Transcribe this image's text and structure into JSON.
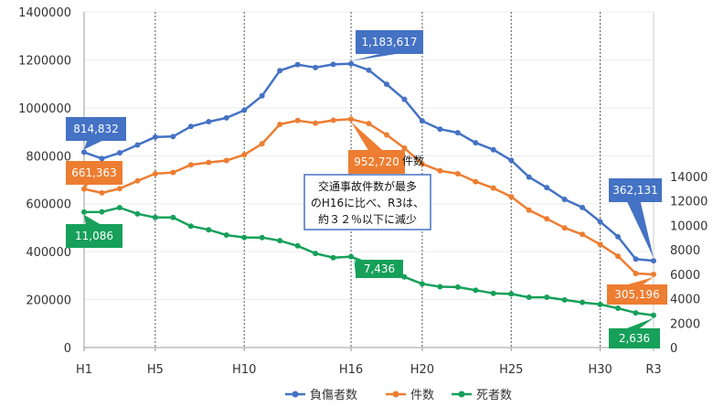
{
  "chart_data": {
    "type": "line",
    "categories": [
      "H1",
      "H2",
      "H3",
      "H4",
      "H5",
      "H6",
      "H7",
      "H8",
      "H9",
      "H10",
      "H11",
      "H12",
      "H13",
      "H14",
      "H15",
      "H16",
      "H17",
      "H18",
      "H19",
      "H20",
      "H21",
      "H22",
      "H23",
      "H24",
      "H25",
      "H26",
      "H27",
      "H28",
      "H29",
      "H30",
      "R1",
      "R2",
      "R3"
    ],
    "x_tick_labels": [
      "H1",
      "H5",
      "H10",
      "H16",
      "H20",
      "H25",
      "H30",
      "R3"
    ],
    "y_left_ticks": [
      "0",
      "200000",
      "400000",
      "600000",
      "800000",
      "1000000",
      "1200000",
      "1400000"
    ],
    "y_left_range": [
      0,
      1400000
    ],
    "y_right_ticks": [
      "0",
      "2000",
      "4000",
      "6000",
      "8000",
      "10000",
      "12000",
      "14000"
    ],
    "y_right_range": [
      0,
      14000
    ],
    "grid": "vertical dashed",
    "legend_position": "bottom",
    "series": [
      {
        "name": "負傷者数",
        "color": "#4472c4",
        "axis": "left",
        "values": [
          814832,
          788000,
          812000,
          845000,
          878000,
          880000,
          922000,
          942000,
          958000,
          990000,
          1050000,
          1155000,
          1180000,
          1168000,
          1181000,
          1183617,
          1157000,
          1098000,
          1035000,
          945000,
          911000,
          896000,
          854000,
          825000,
          781000,
          711000,
          667000,
          618000,
          584000,
          525000,
          462000,
          369000,
          362131
        ]
      },
      {
        "name": "件数",
        "color": "#ed7d31",
        "axis": "left",
        "values": [
          661363,
          645000,
          663000,
          695000,
          725000,
          730000,
          762000,
          772000,
          780000,
          804000,
          850000,
          931000,
          947000,
          936000,
          948000,
          952720,
          934000,
          887000,
          832000,
          766000,
          737000,
          725000,
          692000,
          665000,
          629000,
          573000,
          537000,
          499000,
          472000,
          430000,
          381000,
          309000,
          305196
        ]
      },
      {
        "name": "死者数",
        "color": "#16a05a",
        "axis": "right",
        "values": [
          11086,
          11105,
          11451,
          10942,
          10649,
          10649,
          9942,
          9640,
          9211,
          9012,
          9006,
          8747,
          8326,
          7702,
          7358,
          7436,
          6871,
          6352,
          5782,
          5209,
          4979,
          4948,
          4691,
          4438,
          4388,
          4113,
          4117,
          3904,
          3694,
          3532,
          3215,
          2839,
          2636
        ]
      }
    ],
    "data_labels": [
      {
        "text": "814,832",
        "series": 0,
        "index": 0
      },
      {
        "text": "661,363",
        "series": 1,
        "index": 0
      },
      {
        "text": "11,086",
        "series": 2,
        "index": 0
      },
      {
        "text": "1,183,617",
        "series": 0,
        "index": 15
      },
      {
        "text": "952,720",
        "series": 1,
        "index": 15
      },
      {
        "text": "7,436",
        "series": 2,
        "index": 15
      },
      {
        "text": "362,131",
        "series": 0,
        "index": 32
      },
      {
        "text": "305,196",
        "series": 1,
        "index": 32
      },
      {
        "text": "2,636",
        "series": 2,
        "index": 32
      }
    ],
    "annotation": {
      "lines": [
        "交通事故件数が最多",
        "のH16に比べ、R3は、",
        "約３２％以下に減少"
      ]
    },
    "overlay_text": "件数"
  }
}
